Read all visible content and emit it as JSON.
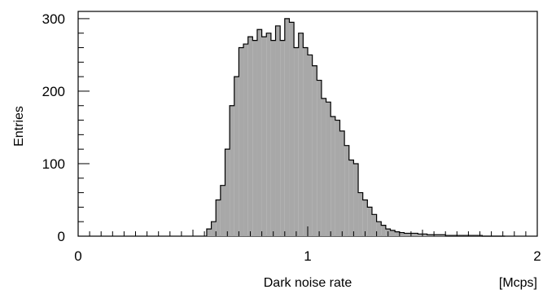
{
  "chart_data": {
    "type": "bar",
    "title": "",
    "xlabel": "Dark noise rate",
    "xunit": "[Mcps]",
    "ylabel": "Entries",
    "xlim": [
      0,
      2
    ],
    "ylim": [
      0,
      310
    ],
    "grid": false,
    "x_ticks": [
      "0",
      "1",
      "2"
    ],
    "y_ticks": [
      "0",
      "100",
      "200",
      "300"
    ],
    "bin_width": 0.02,
    "x_start": 0.56,
    "values": [
      10,
      20,
      50,
      70,
      120,
      180,
      220,
      260,
      265,
      275,
      270,
      285,
      275,
      280,
      270,
      290,
      270,
      300,
      295,
      260,
      280,
      260,
      250,
      235,
      215,
      190,
      185,
      165,
      160,
      145,
      125,
      105,
      100,
      60,
      50,
      40,
      30,
      20,
      15,
      10,
      8,
      6,
      5,
      4,
      4,
      4,
      3,
      3,
      2,
      2,
      2,
      2,
      1,
      1,
      1,
      1,
      1,
      1,
      1,
      1,
      0,
      0,
      0,
      0,
      0
    ],
    "fill_color": "#a8a8a8",
    "line_color": "#000000"
  }
}
